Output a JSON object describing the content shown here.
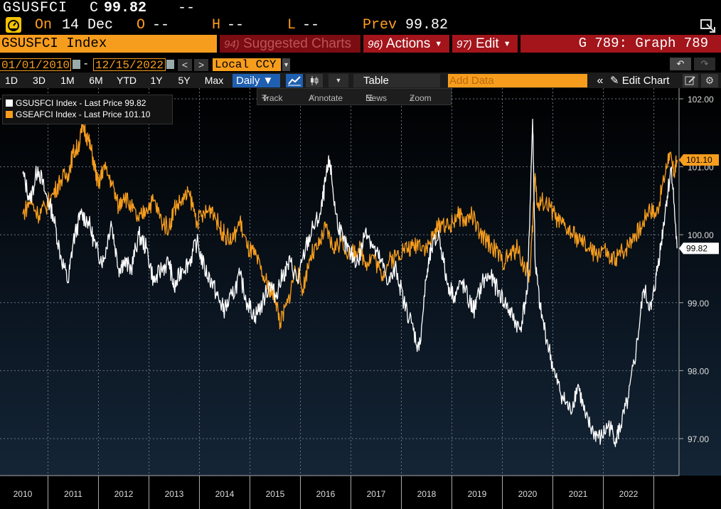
{
  "quote": {
    "ticker": "GSUSFCI",
    "close_label": "C",
    "close_value": "99.82",
    "change": "--",
    "on_label": "On",
    "on_value": "14 Dec",
    "open_label": "O",
    "open_value": "--",
    "high_label": "H",
    "high_value": "--",
    "low_label": "L",
    "low_value": "--",
    "prev_label": "Prev",
    "prev_value": "99.82"
  },
  "function_bar": {
    "title": "GSUSFCI Index",
    "suggested_num": "94)",
    "suggested_label": "Suggested Charts",
    "actions_num": "96)",
    "actions_label": "Actions",
    "edit_num": "97)",
    "edit_label": "Edit",
    "graph_label": "G 789: Graph 789"
  },
  "date_bar": {
    "start_date": "01/01/2010",
    "end_date": "12/15/2022",
    "dash": "-",
    "prev_arrow": "<",
    "next_arrow": ">",
    "currency": "Local CCY"
  },
  "toolbar": {
    "periods": [
      "1D",
      "3D",
      "1M",
      "6M",
      "YTD",
      "1Y",
      "5Y",
      "Max"
    ],
    "frequency": "Daily",
    "table_label": "Table",
    "add_data_placeholder": "Add Data",
    "edit_chart_label": "Edit Chart",
    "collapse_symbol": "«"
  },
  "chart_tools": {
    "track": "Track",
    "annotate": "Annotate",
    "news": "News",
    "zoom": "Zoom"
  },
  "legend": {
    "series1": "GSUSFCI Index - Last Price 99.82",
    "series2": "GSEAFCI Index - Last Price 101.10"
  },
  "colors": {
    "background": "#000000",
    "orange_accent": "#f79d1d",
    "red_function": "#a3141b",
    "blue_active": "#1f5fb0",
    "series_white": "#ffffff",
    "series_orange": "#f79d1d"
  },
  "chart_data": {
    "type": "line",
    "ylim": [
      96.5,
      102.3
    ],
    "yticks": [
      "102.00",
      "101.00",
      "100.00",
      "99.00",
      "98.00",
      "97.00"
    ],
    "xticks": [
      "2010",
      "2011",
      "2012",
      "2013",
      "2014",
      "2015",
      "2016",
      "2017",
      "2018",
      "2019",
      "2020",
      "2021",
      "2022"
    ],
    "grid": true,
    "legend_position": "top-left",
    "last_labels": {
      "GSUSFCI": "99.82",
      "GSEAFCI": "101.10"
    },
    "series": [
      {
        "name": "GSUSFCI Index",
        "color": "#ffffff",
        "x": [
          2010.0,
          2010.15,
          2010.3,
          2010.45,
          2010.6,
          2010.75,
          2010.9,
          2011.0,
          2011.15,
          2011.3,
          2011.45,
          2011.6,
          2011.75,
          2011.9,
          2012.0,
          2012.15,
          2012.3,
          2012.45,
          2012.6,
          2012.75,
          2012.9,
          2013.0,
          2013.15,
          2013.3,
          2013.45,
          2013.6,
          2013.75,
          2013.9,
          2014.0,
          2014.15,
          2014.3,
          2014.45,
          2014.6,
          2014.75,
          2014.9,
          2015.0,
          2015.15,
          2015.3,
          2015.45,
          2015.6,
          2015.75,
          2015.9,
          2016.0,
          2016.08,
          2016.2,
          2016.35,
          2016.5,
          2016.65,
          2016.8,
          2016.95,
          2017.1,
          2017.25,
          2017.4,
          2017.55,
          2017.7,
          2017.85,
          2018.0,
          2018.1,
          2018.25,
          2018.4,
          2018.55,
          2018.7,
          2018.85,
          2018.95,
          2019.1,
          2019.25,
          2019.4,
          2019.55,
          2019.7,
          2019.85,
          2020.0,
          2020.1,
          2020.15,
          2020.25,
          2020.4,
          2020.55,
          2020.7,
          2020.85,
          2021.0,
          2021.15,
          2021.3,
          2021.45,
          2021.6,
          2021.75,
          2021.85,
          2022.0,
          2022.15,
          2022.3,
          2022.45,
          2022.55,
          2022.65,
          2022.75,
          2022.85,
          2022.96
        ],
        "values": [
          100.9,
          100.5,
          101.0,
          100.6,
          100.3,
          99.7,
          99.3,
          99.9,
          100.3,
          100.2,
          99.8,
          99.6,
          100.2,
          99.5,
          99.6,
          99.5,
          100.0,
          99.8,
          99.3,
          99.5,
          99.6,
          99.2,
          99.5,
          99.6,
          99.9,
          99.5,
          99.3,
          99.0,
          98.9,
          99.1,
          99.4,
          99.0,
          98.8,
          99.0,
          99.3,
          99.1,
          99.4,
          99.6,
          99.3,
          99.8,
          100.1,
          100.3,
          100.8,
          101.1,
          100.3,
          99.9,
          99.7,
          99.6,
          100.1,
          99.8,
          99.6,
          99.3,
          99.5,
          99.0,
          98.7,
          98.3,
          99.4,
          99.8,
          100.0,
          99.3,
          99.1,
          99.3,
          99.0,
          98.9,
          99.3,
          99.4,
          99.2,
          99.0,
          98.8,
          98.6,
          99.2,
          101.7,
          99.6,
          98.9,
          98.4,
          97.9,
          97.6,
          97.4,
          97.8,
          97.3,
          97.1,
          97.0,
          97.2,
          97.0,
          97.2,
          97.6,
          98.3,
          99.2,
          98.9,
          99.4,
          99.9,
          100.5,
          101.0,
          99.8
        ]
      },
      {
        "name": "GSEAFCI Index",
        "color": "#f79d1d",
        "x": [
          2010.0,
          2010.15,
          2010.3,
          2010.45,
          2010.6,
          2010.75,
          2010.9,
          2011.0,
          2011.1,
          2011.2,
          2011.3,
          2011.4,
          2011.5,
          2011.6,
          2011.75,
          2011.9,
          2012.0,
          2012.15,
          2012.3,
          2012.45,
          2012.6,
          2012.75,
          2012.9,
          2013.0,
          2013.15,
          2013.3,
          2013.45,
          2013.6,
          2013.75,
          2013.9,
          2014.0,
          2014.15,
          2014.3,
          2014.45,
          2014.6,
          2014.75,
          2014.9,
          2015.0,
          2015.1,
          2015.25,
          2015.4,
          2015.55,
          2015.7,
          2015.85,
          2016.0,
          2016.15,
          2016.3,
          2016.5,
          2016.65,
          2016.8,
          2016.95,
          2017.1,
          2017.25,
          2017.4,
          2017.55,
          2017.7,
          2017.85,
          2018.0,
          2018.15,
          2018.3,
          2018.45,
          2018.6,
          2018.75,
          2018.9,
          2019.05,
          2019.2,
          2019.35,
          2019.5,
          2019.65,
          2019.8,
          2019.95,
          2020.05,
          2020.15,
          2020.2,
          2020.3,
          2020.45,
          2020.6,
          2020.75,
          2020.9,
          2021.05,
          2021.2,
          2021.35,
          2021.5,
          2021.65,
          2021.8,
          2021.95,
          2022.1,
          2022.25,
          2022.4,
          2022.55,
          2022.7,
          2022.8,
          2022.9,
          2022.96
        ],
        "values": [
          100.3,
          100.5,
          100.3,
          100.4,
          100.6,
          100.8,
          100.9,
          101.2,
          101.3,
          101.6,
          101.4,
          101.1,
          100.7,
          101.0,
          100.8,
          100.4,
          100.6,
          100.4,
          100.2,
          100.4,
          100.5,
          100.2,
          100.1,
          100.4,
          100.5,
          100.6,
          100.2,
          100.3,
          100.4,
          100.1,
          100.0,
          99.9,
          100.2,
          99.8,
          99.7,
          99.4,
          99.2,
          99.1,
          98.7,
          99.0,
          99.5,
          99.2,
          99.7,
          99.8,
          100.1,
          99.8,
          99.9,
          99.7,
          99.8,
          99.6,
          99.7,
          99.4,
          99.6,
          99.7,
          99.8,
          99.8,
          99.9,
          99.8,
          100.0,
          100.2,
          100.1,
          100.3,
          100.2,
          100.3,
          100.0,
          99.9,
          99.8,
          99.6,
          99.7,
          99.8,
          99.5,
          99.4,
          100.9,
          100.4,
          100.5,
          100.4,
          100.2,
          100.1,
          100.0,
          99.9,
          99.8,
          99.7,
          99.8,
          99.6,
          99.7,
          99.8,
          100.0,
          100.1,
          100.4,
          100.3,
          100.8,
          101.2,
          100.9,
          101.1
        ]
      }
    ]
  }
}
